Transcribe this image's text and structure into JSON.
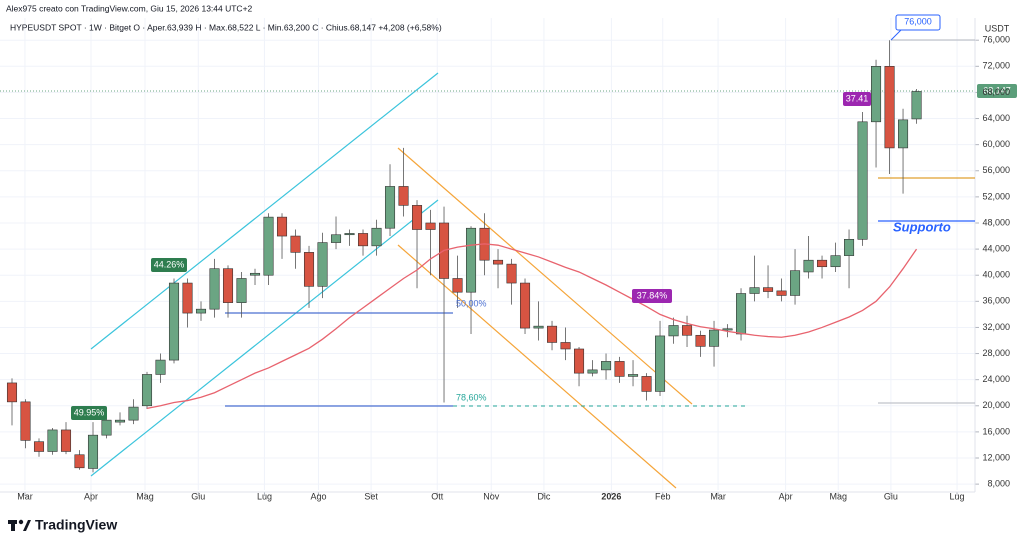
{
  "chart_data": {
    "type": "candlestick",
    "credit": "Alex975 creato con TradingView.com, Giu 15, 2026 13:44 UTC+2",
    "title": "HYPEUSDT SPOT · 1W · Bitget  O · Aper.63,939  H · Max.68,522  L · Min.63,200  C · Chius.68,147  +4,208 (+6,58%)",
    "currency": "USDT",
    "logo": "TradingView",
    "last_price_label": "68,147",
    "annotations": [
      "44.26%",
      "49.95%",
      "37.84%",
      "37.41",
      "50,00%",
      "78,60%",
      "Supporto",
      "76,000"
    ],
    "open": [
      23500,
      20600,
      14500,
      13000,
      16300,
      12500,
      10400,
      15500,
      17500,
      17800,
      20000,
      24800,
      27000,
      38800,
      34200,
      34800,
      41000,
      35800,
      40000,
      40000,
      48900,
      46000,
      43500,
      38300,
      45000,
      46200,
      46400,
      44500,
      47200,
      53600,
      50700,
      48000,
      48000,
      39500,
      37400,
      47200,
      42300,
      41700,
      38800,
      31900,
      32200,
      29700,
      28700,
      25000,
      25500,
      26800,
      24500,
      24500,
      22200,
      30700,
      32300,
      30800,
      29100,
      31600,
      31000,
      37200,
      38100,
      37600,
      36900,
      40500,
      42300,
      41300,
      43000,
      45500,
      63500,
      72000,
      59500,
      63939
    ],
    "high": [
      24200,
      21000,
      15000,
      16600,
      17500,
      13200,
      17500,
      19500,
      19000,
      21000,
      25200,
      28000,
      39500,
      39500,
      36000,
      42500,
      41500,
      40500,
      41000,
      49500,
      49500,
      47000,
      44500,
      46500,
      49000,
      47000,
      47000,
      48500,
      57000,
      59500,
      51500,
      50000,
      50500,
      43000,
      47500,
      49500,
      44000,
      42500,
      39500,
      36000,
      33000,
      32000,
      29000,
      27000,
      28000,
      27500,
      27000,
      25000,
      33000,
      33500,
      33800,
      31500,
      33000,
      32500,
      38000,
      43000,
      41500,
      39500,
      44000,
      46000,
      43000,
      45000,
      47000,
      65000,
      73000,
      76000,
      65500,
      68522
    ],
    "low": [
      17000,
      13500,
      12200,
      12500,
      12600,
      10200,
      9800,
      15000,
      17000,
      17200,
      19500,
      23500,
      26500,
      32000,
      33000,
      33500,
      33500,
      33500,
      38500,
      38500,
      42500,
      41000,
      35000,
      36500,
      44000,
      44500,
      43000,
      43000,
      46000,
      49000,
      38000,
      40000,
      20500,
      35000,
      31000,
      40000,
      38000,
      35500,
      31000,
      30000,
      28500,
      27000,
      23000,
      24500,
      24000,
      23500,
      23000,
      20800,
      21500,
      29500,
      29000,
      27500,
      26000,
      30500,
      30000,
      36000,
      36500,
      36000,
      35500,
      39500,
      39500,
      40500,
      38000,
      44500,
      56500,
      55500,
      52500,
      63200
    ],
    "close": [
      20600,
      14700,
      13000,
      16300,
      13000,
      10500,
      15500,
      17800,
      17800,
      19800,
      24800,
      27000,
      38800,
      34200,
      34800,
      41000,
      35800,
      39500,
      40300,
      48900,
      46000,
      43500,
      38300,
      45000,
      46200,
      46400,
      44500,
      47200,
      53600,
      50700,
      47000,
      47000,
      39500,
      37400,
      47200,
      42300,
      41700,
      38800,
      31900,
      32200,
      29700,
      28700,
      25000,
      25500,
      26800,
      24500,
      24800,
      22200,
      30700,
      32300,
      30800,
      29100,
      31600,
      31800,
      37200,
      38100,
      37500,
      36900,
      40700,
      42300,
      41300,
      43000,
      45500,
      63500,
      72000,
      59500,
      63800,
      68147
    ],
    "moving_average": [
      null,
      null,
      null,
      null,
      null,
      null,
      null,
      null,
      null,
      null,
      19600,
      20000,
      20500,
      20800,
      21300,
      22000,
      23000,
      24000,
      25000,
      25800,
      26800,
      27800,
      28800,
      30200,
      31800,
      33500,
      35000,
      36500,
      38000,
      39500,
      40800,
      42500,
      43800,
      44300,
      44600,
      44800,
      44600,
      44000,
      43400,
      42800,
      42000,
      41200,
      40500,
      39500,
      38500,
      37400,
      36300,
      35200,
      34000,
      33200,
      32600,
      32100,
      31800,
      31400,
      31100,
      30800,
      30600,
      30500,
      30800,
      31300,
      32000,
      32800,
      33600,
      34600,
      36000,
      38200,
      41000,
      44000
    ],
    "up_color": "#6ba583",
    "down_color": "#d75442",
    "ma_color": "#e8636e",
    "xlim": [
      -0.889,
      71.33
    ],
    "xticks": [
      {
        "value": 0.96,
        "label": "Mar"
      },
      {
        "value": 5.85,
        "label": "Apr"
      },
      {
        "value": 9.85,
        "label": "Mag"
      },
      {
        "value": 13.8,
        "label": "Giu"
      },
      {
        "value": 18.7,
        "label": "Lug"
      },
      {
        "value": 22.7,
        "label": "Ago"
      },
      {
        "value": 26.6,
        "label": "Set"
      },
      {
        "value": 31.5,
        "label": "Ott"
      },
      {
        "value": 35.5,
        "label": "Nov"
      },
      {
        "value": 39.4,
        "label": "Dic"
      },
      {
        "value": 44.4,
        "label": "2026"
      },
      {
        "value": 48.2,
        "label": "Feb"
      },
      {
        "value": 52.3,
        "label": "Mar"
      },
      {
        "value": 57.3,
        "label": "Apr"
      },
      {
        "value": 61.2,
        "label": "Mag"
      },
      {
        "value": 65.1,
        "label": "Giu"
      },
      {
        "value": 70,
        "label": "Lug"
      }
    ],
    "ylim": [
      7100,
      79400
    ],
    "yticks": [
      {
        "value": 8000,
        "label": "8,000"
      },
      {
        "value": 12000,
        "label": "12,000"
      },
      {
        "value": 16000,
        "label": "16,000"
      },
      {
        "value": 20000,
        "label": "20,000"
      },
      {
        "value": 24000,
        "label": "24,000"
      },
      {
        "value": 28000,
        "label": "28,000"
      },
      {
        "value": 32000,
        "label": "32,000"
      },
      {
        "value": 36000,
        "label": "36,000"
      },
      {
        "value": 40000,
        "label": "40,000"
      },
      {
        "value": 44000,
        "label": "44,000"
      },
      {
        "value": 48000,
        "label": "48,000"
      },
      {
        "value": 52000,
        "label": "52,000"
      },
      {
        "value": 56000,
        "label": "56,000"
      },
      {
        "value": 60000,
        "label": "60,000"
      },
      {
        "value": 64000,
        "label": "64,000"
      },
      {
        "value": 68000,
        "label": "68,000"
      },
      {
        "value": 72000,
        "label": "72,000"
      },
      {
        "value": 76000,
        "label": "76,000"
      }
    ],
    "grid": true
  }
}
